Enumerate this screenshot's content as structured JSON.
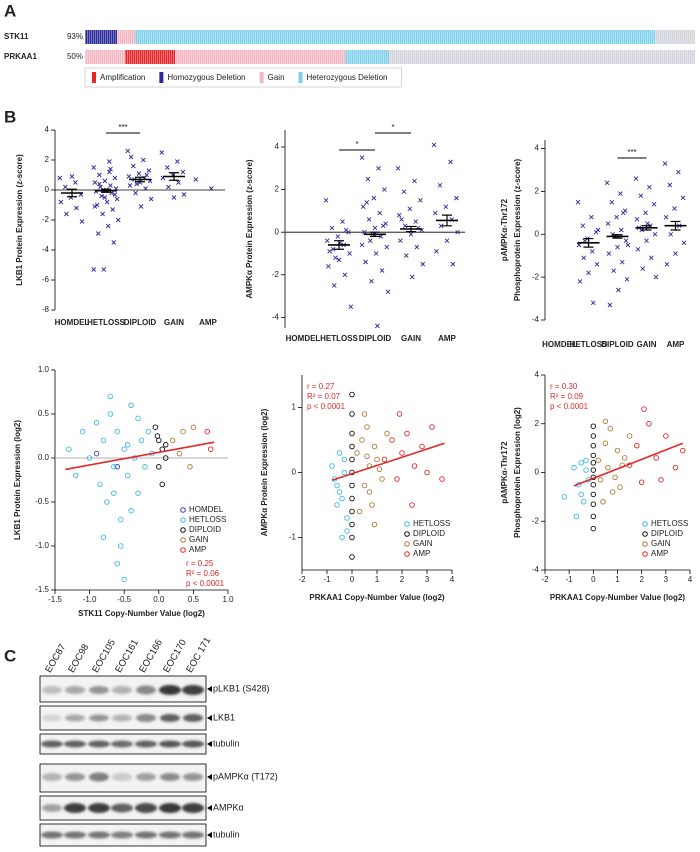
{
  "panel_labels": [
    "A",
    "B",
    "C"
  ],
  "oncoprint": {
    "legend": [
      {
        "label": "Amplification",
        "color": "#e8262a"
      },
      {
        "label": "Homozygous Deletion",
        "color": "#2a2a9a"
      },
      {
        "label": "Gain",
        "color": "#f5b5c0"
      },
      {
        "label": "Heterozygous Deletion",
        "color": "#7fd0ec"
      }
    ],
    "unaltered_color": "#d4d4dc",
    "rows": [
      {
        "gene": "STK11",
        "percent": "93%",
        "segments": [
          {
            "alteration": 1,
            "cases": 16
          },
          {
            "alteration": 2,
            "cases": 9
          },
          {
            "alteration": 3,
            "cases": 260
          },
          {
            "alteration": null,
            "cases": 20
          }
        ]
      },
      {
        "gene": "PRKAA1",
        "percent": "50%",
        "segments": [
          {
            "alteration": 2,
            "cases": 20
          },
          {
            "alteration": 0,
            "cases": 25
          },
          {
            "alteration": 2,
            "cases": 85
          },
          {
            "alteration": 3,
            "cases": 22
          },
          {
            "alteration": null,
            "cases": 153
          }
        ]
      }
    ]
  },
  "chart_data": [
    {
      "type": "dotplot",
      "ylabel": "LKB1 Protein Expression (z-score)",
      "color": "#2e2e9e",
      "categories": [
        "HOMDEL",
        "HETLOSS",
        "DIPLOID",
        "GAIN",
        "AMP"
      ],
      "points": [
        [
          0.8,
          0.5,
          0.2,
          -0.3,
          -0.5,
          -0.8,
          -1.2,
          -1.6,
          -2.1,
          0.9
        ],
        [
          1.5,
          1.2,
          1.0,
          0.8,
          0.6,
          0.5,
          0.3,
          0.2,
          0.1,
          0,
          -0.1,
          -0.2,
          -0.4,
          -0.6,
          -0.8,
          -1,
          -1.3,
          -1.6,
          -2,
          -2.4,
          -2.9,
          -3.5,
          -5.3,
          -5.3,
          1.9,
          0.4,
          -0.3,
          -0.5,
          -1.1,
          1.4
        ],
        [
          2.6,
          2.0,
          1.6,
          1.3,
          1.1,
          0.9,
          0.8,
          0.7,
          0.6,
          0.5,
          0.3,
          0.1,
          -0.2,
          -0.6,
          -1.1,
          2.2,
          1.0,
          0.4
        ],
        [
          2.5,
          1.9,
          1.5,
          1.2,
          1.0,
          0.8,
          0.5,
          0.2,
          -0.3,
          -0.5
        ],
        [
          0.7,
          0.1
        ]
      ],
      "means": [
        -0.2,
        -0.05,
        0.7,
        0.9,
        null
      ],
      "sem": [
        0.25,
        0.1,
        0.15,
        0.25,
        null
      ],
      "ylim": [
        -8,
        4
      ],
      "yticks": [
        -8,
        -6,
        -4,
        -2,
        0,
        2,
        4
      ],
      "zero_line": true,
      "brackets": [
        {
          "label": "***",
          "categories": [
            "HETLOSS",
            "DIPLOID"
          ]
        }
      ]
    },
    {
      "type": "dotplot",
      "ylabel": "AMPKα Protein Expression (z-score)",
      "color": "#2e2e9e",
      "categories": [
        "HOMDEL",
        "HETLOSS",
        "DIPLOID",
        "GAIN",
        "AMP"
      ],
      "points": [
        [],
        [
          1.5,
          0.5,
          0.2,
          0,
          -0.2,
          -0.4,
          -0.6,
          -0.8,
          -1,
          -1.3,
          -1.6,
          -2,
          -2.5,
          -3.5,
          -0.5,
          -0.9,
          0.1,
          -1.2
        ],
        [
          3.5,
          3.0,
          2.5,
          2,
          1.6,
          1.2,
          0.9,
          0.6,
          0.4,
          0.2,
          0,
          -0.2,
          -0.4,
          -0.7,
          -1,
          -1.4,
          -1.8,
          -2.3,
          -2.8,
          -4.4,
          1.4,
          0.3,
          -0.1,
          -0.6
        ],
        [
          3.0,
          2.4,
          1.9,
          1.5,
          1.1,
          0.8,
          0.5,
          0.3,
          0.1,
          -0.1,
          -0.4,
          -0.7,
          -1.1,
          -1.5,
          -2.1,
          0.6,
          0.2
        ],
        [
          4.1,
          3.3,
          2.2,
          1.6,
          1.2,
          0.9,
          0.6,
          0.3,
          0,
          -0.4,
          -0.9,
          -1.5
        ]
      ],
      "means": [
        null,
        -0.6,
        -0.1,
        0.15,
        0.55
      ],
      "sem": [
        null,
        0.2,
        0.1,
        0.12,
        0.25
      ],
      "ylim": [
        -4.5,
        4.8
      ],
      "yticks": [
        -4,
        -2,
        0,
        2,
        4
      ],
      "zero_line": true,
      "brackets": [
        {
          "label": "*",
          "categories": [
            "HETLOSS",
            "DIPLOID"
          ]
        },
        {
          "label": "*",
          "categories": [
            "DIPLOID",
            "GAIN"
          ]
        }
      ]
    },
    {
      "type": "dotplot",
      "ylabel": [
        "pAMPKα-Thr172",
        "Phosphoprotein Expression (z-score)"
      ],
      "color": "#2e2e9e",
      "categories": [
        "HOMDEL",
        "HETLOSS",
        "DIPLOID",
        "GAIN",
        "AMP"
      ],
      "points": [
        [],
        [
          1.5,
          0.8,
          0.4,
          0.1,
          -0.2,
          -0.5,
          -0.8,
          -1.1,
          -1.4,
          -1.8,
          -2.2,
          -3.2,
          -0.3,
          0.2
        ],
        [
          2.4,
          1.9,
          1.5,
          1.1,
          0.8,
          0.5,
          0.2,
          0,
          -0.3,
          -0.6,
          -0.9,
          -1.3,
          -1.7,
          -2.1,
          -2.6,
          -3.3,
          1.0,
          -0.1,
          -0.5
        ],
        [
          2.6,
          2.2,
          1.8,
          1.4,
          1.0,
          0.7,
          0.4,
          0.2,
          0,
          -0.3,
          -0.7,
          -1.1,
          -1.6,
          -2.0,
          0.5,
          0.3
        ],
        [
          3.3,
          2.9,
          2.3,
          1.7,
          1.2,
          0.8,
          0.4,
          0,
          -0.4,
          -0.9,
          -1.4
        ]
      ],
      "means": [
        null,
        -0.4,
        -0.1,
        0.3,
        0.4
      ],
      "sem": [
        null,
        0.2,
        0.08,
        0.1,
        0.2
      ],
      "ylim": [
        -4,
        4.4
      ],
      "yticks": [
        -4,
        -2,
        0,
        2,
        4
      ],
      "zero_line": false,
      "brackets": [
        {
          "label": "***",
          "categories": [
            "DIPLOID",
            "GAIN"
          ]
        }
      ]
    },
    {
      "type": "scatter",
      "xlabel": "STK11 Copy-Number Value (log2)",
      "ylabel": "LKB1 Protein Expression (log2)",
      "xlim": [
        -1.5,
        1.0
      ],
      "xticks": [
        -1.5,
        {
          "value": -1,
          "label": "-1.0"
        },
        -0.5,
        {
          "value": 0,
          "label": "0.0"
        },
        0.5,
        {
          "value": 1,
          "label": "1.0"
        }
      ],
      "ylim": [
        -1.5,
        1.0
      ],
      "yticks": [
        -1.5,
        {
          "value": -1,
          "label": "-1.0"
        },
        -0.5,
        {
          "value": 0,
          "label": "0.0"
        },
        0.5,
        {
          "value": 1,
          "label": "1.0"
        }
      ],
      "zero_line": true,
      "series": [
        {
          "name": "HOMDEL",
          "color": "#3a3ab0",
          "x": [
            -0.9,
            -0.6
          ],
          "y": [
            0.05,
            -0.1
          ]
        },
        {
          "name": "HETLOSS",
          "color": "#40b8e8",
          "x": [
            -1.3,
            -1.2,
            -1.1,
            -1.0,
            -0.9,
            -0.85,
            -0.8,
            -0.75,
            -0.7,
            -0.65,
            -0.6,
            -0.55,
            -0.5,
            -0.45,
            -0.4,
            -0.35,
            -0.3,
            -0.25,
            -0.2,
            -0.15,
            -0.1,
            -0.8,
            -0.6,
            -0.5,
            -0.7,
            -0.4,
            -0.3,
            -0.55,
            -0.65,
            -0.45
          ],
          "y": [
            0.1,
            -0.2,
            0.3,
            0.0,
            0.4,
            -0.3,
            0.2,
            -0.5,
            0.5,
            -0.1,
            0.3,
            -0.7,
            0.1,
            -0.2,
            0.6,
            0.0,
            -0.4,
            0.2,
            -0.1,
            0.3,
            0.05,
            -0.9,
            -1.2,
            -1.38,
            0.7,
            -0.6,
            0.45,
            -1.0,
            -0.4,
            0.15
          ]
        },
        {
          "name": "DIPLOID",
          "color": "#111111",
          "x": [
            -0.05,
            0.0,
            0.05,
            0.1,
            0.0,
            0.05,
            -0.02,
            0.1
          ],
          "y": [
            0.35,
            0.2,
            0.1,
            0.0,
            -0.1,
            -0.3,
            0.25,
            0.15
          ]
        },
        {
          "name": "GAIN",
          "color": "#b07a3a",
          "x": [
            0.2,
            0.3,
            0.35,
            0.45,
            0.5
          ],
          "y": [
            0.2,
            0.05,
            0.3,
            -0.1,
            0.35
          ]
        },
        {
          "name": "AMP",
          "color": "#e02828",
          "x": [
            0.7,
            0.75
          ],
          "y": [
            0.3,
            0.1
          ]
        }
      ],
      "fit": {
        "x": [
          -1.35,
          0.8
        ],
        "y": [
          -0.13,
          0.18
        ],
        "color": "#e02828"
      },
      "annotation": [
        "r = 0.25",
        "R² = 0.06",
        "p < 0.0001"
      ],
      "annotation_position": "lower right",
      "legend_position": "lower right"
    },
    {
      "type": "scatter",
      "xlabel": "PRKAA1 Copy-Number Value (log2)",
      "ylabel": "AMPKα Protein Expression (log2)",
      "xlim": [
        -2,
        4
      ],
      "xticks": [
        -2,
        -1,
        0,
        1,
        2,
        3,
        4
      ],
      "ylim": [
        -1.5,
        1.5
      ],
      "yticks": [
        -1,
        0,
        1
      ],
      "zero_line": false,
      "series": [
        {
          "name": "HETLOSS",
          "color": "#40b8e8",
          "x": [
            -0.8,
            -0.6,
            -0.5,
            -0.4,
            -0.3,
            -0.2,
            -0.6,
            -0.4,
            -0.7,
            -0.3,
            -0.5,
            -0.2
          ],
          "y": [
            0.1,
            -0.2,
            0.3,
            -0.4,
            0.0,
            -0.7,
            -0.5,
            -1.0,
            -0.1,
            0.2,
            -0.3,
            -0.9
          ]
        },
        {
          "name": "DIPLOID",
          "color": "#111111",
          "x": [
            0,
            0,
            0,
            0,
            0,
            0,
            0,
            0,
            0,
            0,
            0,
            0
          ],
          "y": [
            1.2,
            0.9,
            0.6,
            0.4,
            0.2,
            0.0,
            -0.2,
            -0.4,
            -0.6,
            -0.8,
            -1.0,
            -1.3
          ]
        },
        {
          "name": "GAIN",
          "color": "#b07a3a",
          "x": [
            0.2,
            0.4,
            0.5,
            0.6,
            0.7,
            0.8,
            0.9,
            1.0,
            1.2,
            1.4,
            0.3,
            0.5,
            0.7,
            1.1,
            0.6,
            0.9
          ],
          "y": [
            0.3,
            0.5,
            -0.2,
            0.7,
            0.1,
            -0.5,
            0.4,
            0.2,
            -0.1,
            0.6,
            -0.6,
            0.9,
            -0.3,
            0.05,
            0.25,
            -0.8
          ]
        },
        {
          "name": "AMP",
          "color": "#e02828",
          "x": [
            1.3,
            1.6,
            1.8,
            2.0,
            2.2,
            2.5,
            2.8,
            3.0,
            3.2,
            3.6,
            1.9,
            2.4
          ],
          "y": [
            0.2,
            0.5,
            -0.1,
            0.3,
            0.6,
            0.1,
            0.4,
            0.0,
            0.7,
            -0.1,
            0.9,
            -0.5
          ]
        }
      ],
      "fit": {
        "x": [
          -0.8,
          3.7
        ],
        "y": [
          -0.12,
          0.45
        ],
        "color": "#e02828"
      },
      "annotation": [
        "r = 0.27",
        "R² = 0.07",
        "p < 0.0001"
      ],
      "annotation_position": "upper left",
      "legend_position": "lower right"
    },
    {
      "type": "scatter",
      "xlabel": "PRKAA1 Copy-Number Value (log2)",
      "ylabel": [
        "pAMPKα-Thr172",
        "Phosphoprotein Expression (log2)"
      ],
      "xlim": [
        -2,
        4
      ],
      "xticks": [
        -2,
        -1,
        0,
        1,
        2,
        3,
        4
      ],
      "ylim": [
        -4,
        4
      ],
      "yticks": [
        -4,
        -2,
        0,
        2,
        4
      ],
      "zero_line": false,
      "series": [
        {
          "name": "HETLOSS",
          "color": "#40b8e8",
          "x": [
            -1.2,
            -0.8,
            -0.6,
            -0.5,
            -0.4,
            -0.3,
            -0.2,
            -0.7,
            -0.5,
            -0.3
          ],
          "y": [
            -1.0,
            0.2,
            -0.5,
            0.4,
            -1.2,
            0.1,
            -0.3,
            -1.8,
            -0.9,
            0.5
          ]
        },
        {
          "name": "DIPLOID",
          "color": "#111111",
          "x": [
            0,
            0,
            0,
            0,
            0,
            0,
            0,
            0,
            0,
            0,
            0,
            0
          ],
          "y": [
            1.9,
            1.5,
            1.1,
            0.7,
            0.4,
            0.1,
            -0.2,
            -0.5,
            -0.9,
            -1.3,
            -1.8,
            -2.3
          ]
        },
        {
          "name": "GAIN",
          "color": "#b07a3a",
          "x": [
            0.2,
            0.3,
            0.5,
            0.6,
            0.8,
            1.0,
            1.2,
            1.5,
            0.4,
            0.7,
            0.9,
            1.3,
            0.5,
            1.1
          ],
          "y": [
            0.5,
            -0.3,
            1.2,
            0.2,
            -0.8,
            0.9,
            0.3,
            1.5,
            -1.2,
            1.8,
            -0.2,
            0.6,
            2.1,
            -0.6
          ]
        },
        {
          "name": "AMP",
          "color": "#e02828",
          "x": [
            1.5,
            1.8,
            2.0,
            2.3,
            2.6,
            3.0,
            3.4,
            3.7,
            2.1,
            2.8
          ],
          "y": [
            0.3,
            1.1,
            -0.4,
            2.0,
            0.6,
            1.5,
            0.2,
            0.9,
            2.6,
            -0.3
          ]
        }
      ],
      "fit": {
        "x": [
          -0.8,
          3.7
        ],
        "y": [
          -0.55,
          1.2
        ],
        "color": "#e02828"
      },
      "annotation": [
        "r = 0.30",
        "R² = 0.09",
        "p < 0.0001"
      ],
      "annotation_position": "upper left",
      "legend_position": "lower right"
    }
  ],
  "blots": {
    "samples": [
      "EOC87",
      "EOC98",
      "EOC105",
      "EOC161",
      "EOC166",
      "EOC170",
      "EOC 171"
    ],
    "labels": [
      "pLKB1 (S428)",
      "LKB1",
      "tubulin",
      "pAMPKα (T172)",
      "AMPKα",
      "tubulin"
    ]
  }
}
